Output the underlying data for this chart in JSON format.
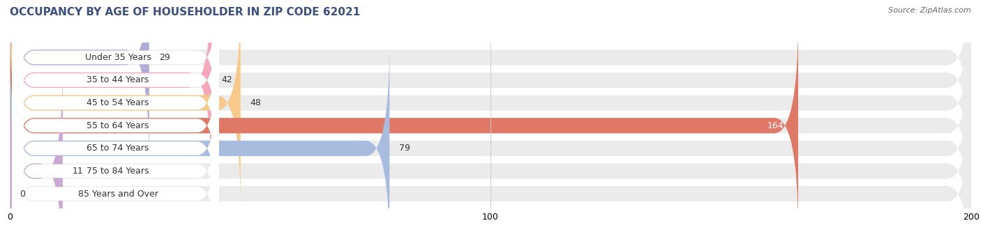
{
  "title": "OCCUPANCY BY AGE OF HOUSEHOLDER IN ZIP CODE 62021",
  "source": "Source: ZipAtlas.com",
  "categories": [
    "Under 35 Years",
    "35 to 44 Years",
    "45 to 54 Years",
    "55 to 64 Years",
    "65 to 74 Years",
    "75 to 84 Years",
    "85 Years and Over"
  ],
  "values": [
    29,
    42,
    48,
    164,
    79,
    11,
    0
  ],
  "bar_colors": [
    "#b0aed8",
    "#f5a8bc",
    "#f7c98a",
    "#e07868",
    "#a8bce0",
    "#c8aad4",
    "#88ccc8"
  ],
  "bar_bg_color": "#ebebeb",
  "label_bg_color": "#ffffff",
  "xlim": [
    0,
    200
  ],
  "xticks": [
    0,
    100,
    200
  ],
  "bar_height": 0.68,
  "figsize": [
    14.06,
    3.4
  ],
  "dpi": 100,
  "title_fontsize": 11,
  "label_fontsize": 9,
  "value_fontsize": 9,
  "source_fontsize": 8,
  "title_color": "#3a5080",
  "source_color": "#666666",
  "label_color": "#333333"
}
